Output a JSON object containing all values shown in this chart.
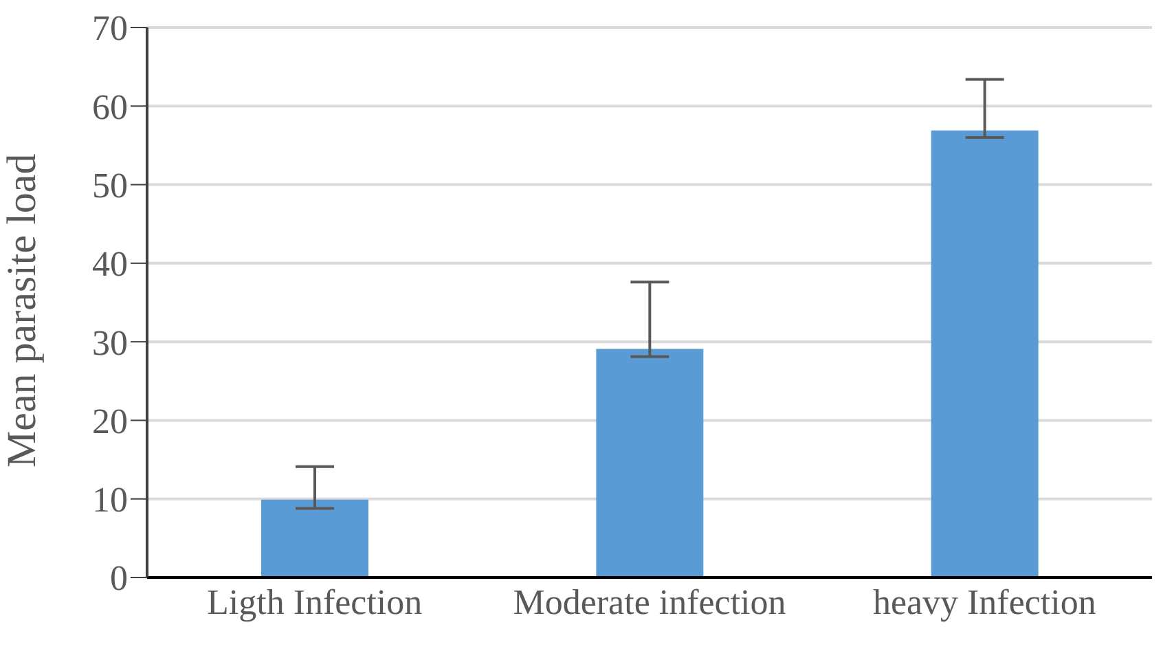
{
  "chart_data": {
    "type": "bar",
    "ylabel": "Mean parasite load",
    "categories": [
      "Ligth Infection",
      "Moderate infection",
      "heavy Infection"
    ],
    "values": [
      9.9,
      29.1,
      56.9
    ],
    "errors": [
      [
        8.8,
        14.1
      ],
      [
        28.1,
        37.6
      ],
      [
        56.0,
        63.4
      ]
    ],
    "color": "#5b9bd5",
    "ylim": [
      0,
      70
    ],
    "yticks": [
      0,
      10,
      20,
      30,
      40,
      50,
      60,
      70
    ],
    "grid": "y",
    "legend": false
  }
}
